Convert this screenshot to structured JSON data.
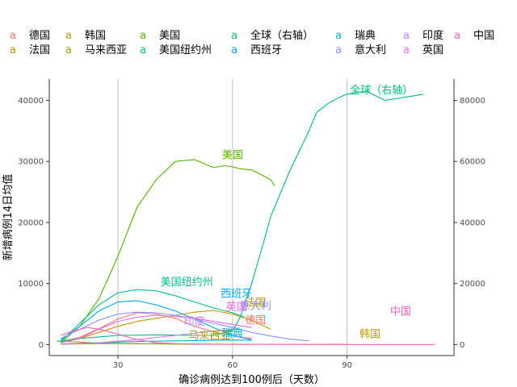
{
  "chart_data": {
    "type": "line",
    "xlabel": "确诊病例达到100例后（天数）",
    "ylabel": "新增病例14日均值",
    "xlim": [
      12,
      118
    ],
    "ylim": [
      -1800,
      43500
    ],
    "y2lim": [
      -3600,
      87000
    ],
    "x_ticks": [
      30,
      60,
      90
    ],
    "y_ticks": [
      0,
      10000,
      20000,
      30000,
      40000
    ],
    "y2_ticks": [
      0,
      20000,
      40000,
      60000,
      80000
    ],
    "grid": "vertical major lines at x = 30, 60, 90",
    "legend_position": "top",
    "series": [
      {
        "name": "德国",
        "color": "#F8766D",
        "axis": "left",
        "label_text": "德国",
        "label_at": [
          66,
          3400
        ],
        "x": [
          15,
          20,
          25,
          30,
          35,
          40,
          45,
          50,
          55,
          60,
          62,
          65
        ],
        "y": [
          400,
          1200,
          2600,
          4200,
          5200,
          5000,
          4300,
          3000,
          2100,
          1500,
          1200,
          1000
        ]
      },
      {
        "name": "韩国",
        "color": "#C49A00",
        "axis": "left",
        "label_text": "韩国",
        "label_at": [
          96,
          1200
        ],
        "x": [
          15,
          20,
          25,
          35,
          45,
          60,
          75,
          90
        ],
        "y": [
          550,
          400,
          250,
          150,
          100,
          60,
          40,
          50
        ]
      },
      {
        "name": "美国",
        "color": "#53B400",
        "axis": "left",
        "label_text": "美国",
        "label_at": [
          60,
          30500
        ],
        "x": [
          15,
          20,
          25,
          30,
          35,
          40,
          45,
          50,
          53,
          55,
          58,
          60,
          62,
          65,
          67,
          70,
          71
        ],
        "y": [
          300,
          3000,
          7500,
          14500,
          22500,
          27000,
          30000,
          30300,
          29500,
          29000,
          29300,
          29100,
          28800,
          28600,
          28000,
          27000,
          26000
        ]
      },
      {
        "name": "全球（右轴）",
        "color": "#00BC7F",
        "axis": "right",
        "label_text": "全球（右轴）",
        "label_at": [
          99,
          82200
        ],
        "x": [
          14,
          20,
          30,
          40,
          50,
          55,
          60,
          62,
          65,
          68,
          70,
          75,
          80,
          82,
          85,
          88,
          90,
          92,
          95,
          100,
          105,
          110
        ],
        "y": [
          1000,
          2000,
          3000,
          3200,
          3000,
          3000,
          4500,
          9000,
          20000,
          33000,
          42000,
          57000,
          70000,
          76000,
          79000,
          81000,
          82000,
          82500,
          83000,
          80000,
          81000,
          82000
        ]
      },
      {
        "name": "法国",
        "color": "#C49A00",
        "axis": "left",
        "label_text": "法国",
        "label_at": [
          66,
          6300
        ],
        "x": [
          15,
          20,
          25,
          30,
          35,
          40,
          45,
          50,
          55,
          60,
          65,
          70
        ],
        "y": [
          300,
          1000,
          2000,
          3000,
          3800,
          4300,
          4800,
          5300,
          5600,
          5000,
          4000,
          2500
        ]
      },
      {
        "name": "马来西亚",
        "color": "#A3A500",
        "axis": "left",
        "label_text": "马来西亚",
        "label_at": [
          54,
          900
        ],
        "x": [
          15,
          20,
          25,
          30,
          35,
          40,
          45,
          50,
          55,
          60,
          65
        ],
        "y": [
          50,
          100,
          150,
          150,
          120,
          100,
          80,
          60,
          50,
          40,
          30
        ]
      },
      {
        "name": "美国纽约州",
        "color": "#00C08B",
        "axis": "left",
        "label_text": "美国纽约州",
        "label_at": [
          48,
          9700
        ],
        "x": [
          15,
          20,
          25,
          30,
          35,
          40,
          45,
          50,
          55,
          60,
          63
        ],
        "y": [
          500,
          3500,
          6500,
          8500,
          9000,
          8800,
          8000,
          7000,
          6000,
          5200,
          4500
        ]
      },
      {
        "name": "瑞典",
        "color": "#00B4C5",
        "axis": "left",
        "label_text": "瑞典",
        "label_at": [
          60,
          1300
        ],
        "x": [
          15,
          25,
          35,
          45,
          55,
          60,
          65
        ],
        "y": [
          100,
          300,
          500,
          600,
          700,
          750,
          700
        ]
      },
      {
        "name": "西班牙",
        "color": "#00A9FF",
        "axis": "left",
        "label_text": "西班牙",
        "label_at": [
          61,
          7800
        ],
        "x": [
          15,
          20,
          25,
          30,
          35,
          40,
          45,
          50,
          55,
          60,
          65
        ],
        "y": [
          800,
          3000,
          5500,
          7000,
          7200,
          6500,
          5500,
          4200,
          2800,
          1500,
          800
        ]
      },
      {
        "name": "意大利",
        "color": "#8494FF",
        "axis": "left",
        "label_text": "意大利",
        "label_at": [
          66,
          5800
        ],
        "x": [
          15,
          20,
          25,
          30,
          35,
          40,
          45,
          50,
          55,
          60,
          65,
          70,
          75,
          80
        ],
        "y": [
          1000,
          2500,
          4000,
          5000,
          5300,
          5200,
          4800,
          4200,
          3500,
          2800,
          2000,
          1400,
          900,
          600
        ]
      },
      {
        "name": "印度",
        "color": "#C77CFF",
        "axis": "left",
        "label_text": "印度",
        "label_at": [
          50,
          3200
        ],
        "x": [
          15,
          25,
          35,
          45,
          55,
          60
        ],
        "y": [
          60,
          300,
          800,
          1500,
          2200,
          2500
        ]
      },
      {
        "name": "英国",
        "color": "#E76BF3",
        "axis": "left",
        "label_text": "英国",
        "label_at": [
          61,
          5600
        ],
        "x": [
          15,
          20,
          25,
          30,
          35,
          40,
          45,
          50,
          55,
          60,
          65
        ],
        "y": [
          300,
          1000,
          2500,
          3800,
          4500,
          4800,
          4600,
          4300,
          3800,
          3300,
          2800
        ]
      },
      {
        "name": "中国",
        "color": "#FF62BC",
        "axis": "left",
        "label_text": "中国",
        "label_at": [
          104,
          4900
        ],
        "x": [
          15,
          18,
          22,
          26,
          30,
          35,
          40,
          45,
          50,
          60,
          70,
          80,
          90,
          95,
          100,
          110,
          113
        ],
        "y": [
          1500,
          2200,
          2800,
          2400,
          1700,
          800,
          300,
          150,
          80,
          40,
          30,
          20,
          15,
          10,
          10,
          5,
          5
        ]
      }
    ]
  }
}
